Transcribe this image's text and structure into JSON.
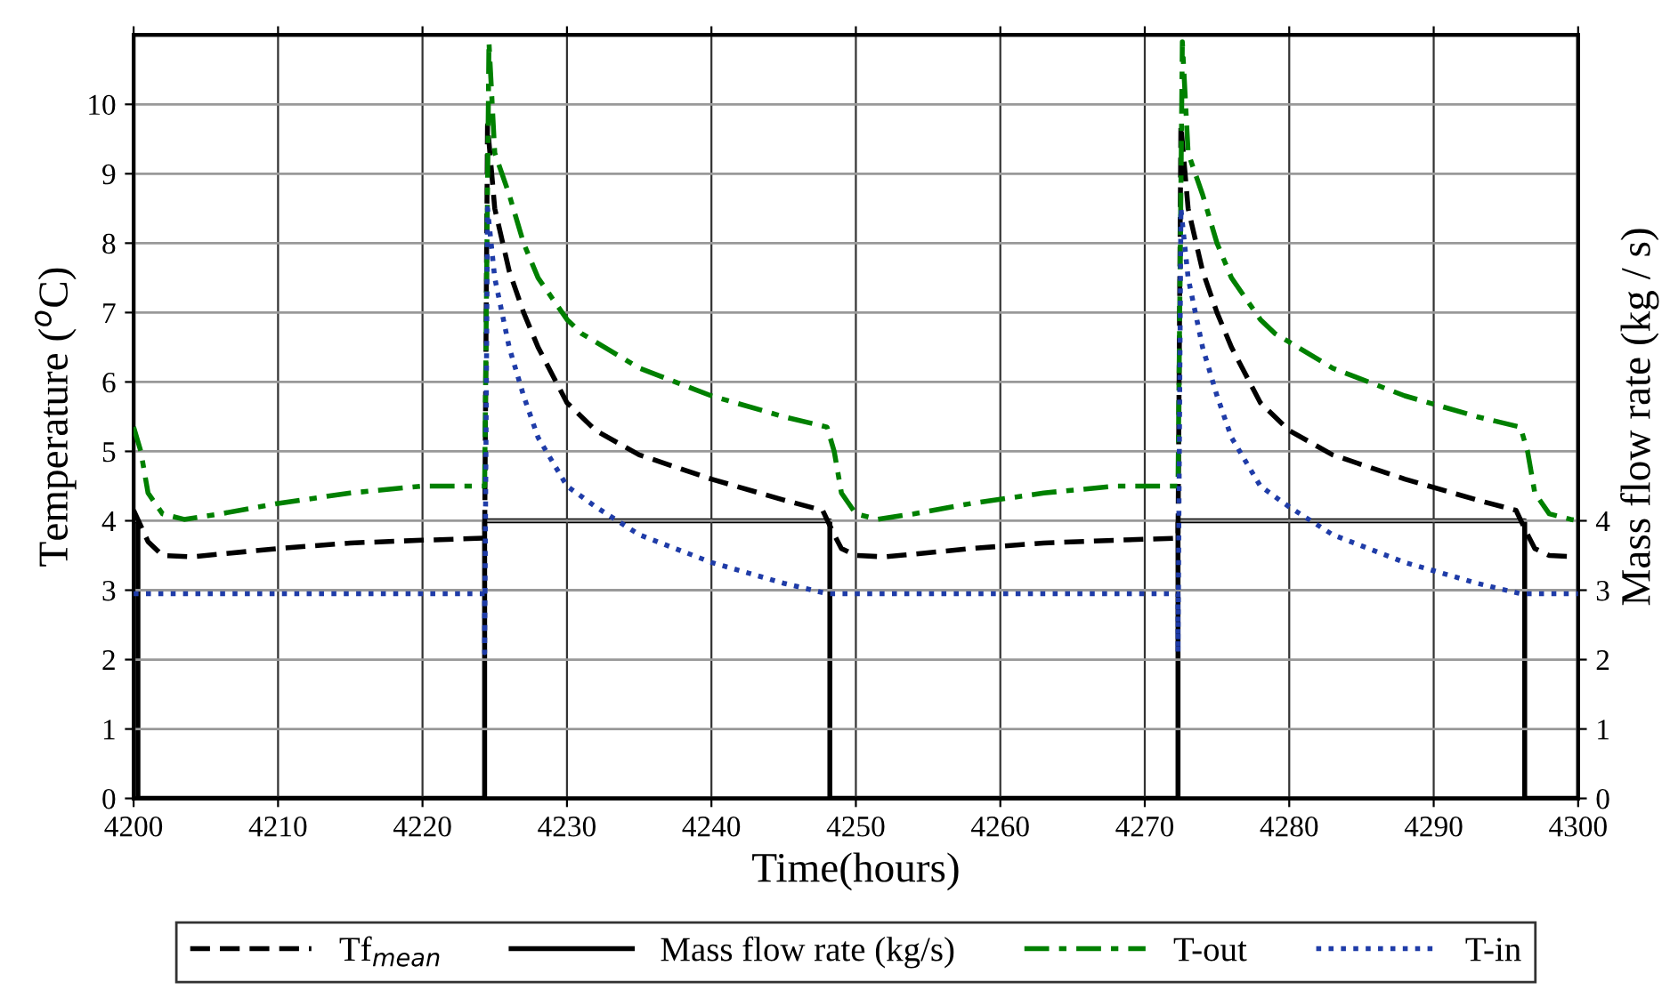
{
  "chart_data": {
    "type": "line",
    "xlabel": "Time(hours)",
    "ylabel": "Temperature ($^{o}$C)",
    "y2label": "Mass flow rate (kg / s)",
    "xlim": [
      4200,
      4300
    ],
    "xticks": [
      4200,
      4210,
      4220,
      4230,
      4240,
      4250,
      4260,
      4270,
      4280,
      4290,
      4300
    ],
    "ylim": [
      0,
      11
    ],
    "yticks": [
      0,
      1,
      2,
      3,
      4,
      5,
      6,
      7,
      8,
      9,
      10
    ],
    "y2lim": [
      0,
      11
    ],
    "y2ticks": [
      0,
      1,
      2,
      3,
      4
    ],
    "grid": true,
    "legend": "bottom",
    "series": [
      {
        "name": "Tf$_{mean}$",
        "color": "#000000",
        "line_style": "dashed",
        "x": [
          4200,
          4201,
          4202,
          4204,
          4210,
          4215,
          4220,
          4224.3,
          4224.5,
          4225,
          4226,
          4227,
          4228,
          4230,
          4232,
          4235,
          4240,
          4245,
          4247.7,
          4248.5,
          4249,
          4250,
          4252,
          4258,
          4263,
          4268,
          4272.3,
          4272.5,
          4273,
          4274,
          4275,
          4276,
          4278,
          4280,
          4283,
          4288,
          4293,
          4295.7,
          4296.5,
          4297,
          4298,
          4300
        ],
        "values": [
          4.15,
          3.7,
          3.5,
          3.48,
          3.6,
          3.68,
          3.72,
          3.75,
          9.7,
          8.5,
          7.6,
          7.0,
          6.5,
          5.7,
          5.3,
          4.95,
          4.6,
          4.3,
          4.15,
          3.8,
          3.6,
          3.5,
          3.48,
          3.6,
          3.68,
          3.72,
          3.75,
          9.7,
          8.5,
          7.6,
          7.0,
          6.5,
          5.7,
          5.3,
          4.95,
          4.6,
          4.3,
          4.15,
          3.8,
          3.6,
          3.5,
          3.48
        ]
      },
      {
        "name": "Mass flow rate (kg/s)",
        "color": "#000000",
        "line_style": "solid",
        "axis": "y2",
        "x": [
          4200,
          4200.3,
          4200.3,
          4224.3,
          4224.3,
          4248.2,
          4248.2,
          4272.3,
          4272.3,
          4296.3,
          4296.3,
          4300
        ],
        "values": [
          4,
          4,
          0,
          0,
          4,
          4,
          0,
          0,
          4,
          4,
          0,
          0
        ]
      },
      {
        "name": "T-out",
        "color": "#008000",
        "line_style": "dashdot",
        "x": [
          4200,
          4200.5,
          4201,
          4202,
          4203.5,
          4206,
          4210,
          4215,
          4220,
          4224.3,
          4224.6,
          4225,
          4226,
          4227,
          4228,
          4230,
          4231,
          4235,
          4240,
          4245,
          4248,
          4248.5,
          4249,
          4250,
          4251.5,
          4254,
          4258,
          4263,
          4268,
          4272.3,
          4272.6,
          4273,
          4274,
          4275,
          4276,
          4278,
          4279,
          4283,
          4288,
          4293,
          4296,
          4296.5,
          4297,
          4298,
          4299.5,
          4300
        ],
        "values": [
          5.35,
          5.0,
          4.4,
          4.1,
          4.02,
          4.1,
          4.25,
          4.4,
          4.5,
          4.5,
          10.9,
          9.3,
          8.7,
          8.0,
          7.5,
          6.9,
          6.7,
          6.2,
          5.8,
          5.5,
          5.35,
          5.0,
          4.4,
          4.1,
          4.02,
          4.1,
          4.25,
          4.4,
          4.5,
          4.5,
          10.9,
          9.3,
          8.7,
          8.0,
          7.5,
          6.9,
          6.7,
          6.2,
          5.8,
          5.5,
          5.35,
          5.0,
          4.4,
          4.1,
          4.02,
          4.0
        ]
      },
      {
        "name": "T-in",
        "color": "#1f3ca8",
        "line_style": "dotted",
        "x": [
          4200,
          4224.3,
          4224.3,
          4224.5,
          4225,
          4226,
          4227,
          4228,
          4230,
          4232,
          4235,
          4240,
          4245,
          4248,
          4272.3,
          4272.3,
          4272.5,
          4273,
          4274,
          4275,
          4276,
          4278,
          4280,
          4283,
          4288,
          4293,
          4296,
          4300
        ],
        "values": [
          2.95,
          2.95,
          2.1,
          8.5,
          7.5,
          6.5,
          5.8,
          5.2,
          4.5,
          4.2,
          3.8,
          3.4,
          3.1,
          2.95,
          2.95,
          2.1,
          8.5,
          7.5,
          6.5,
          5.8,
          5.2,
          4.5,
          4.2,
          3.8,
          3.4,
          3.1,
          2.95,
          2.95
        ]
      }
    ]
  }
}
